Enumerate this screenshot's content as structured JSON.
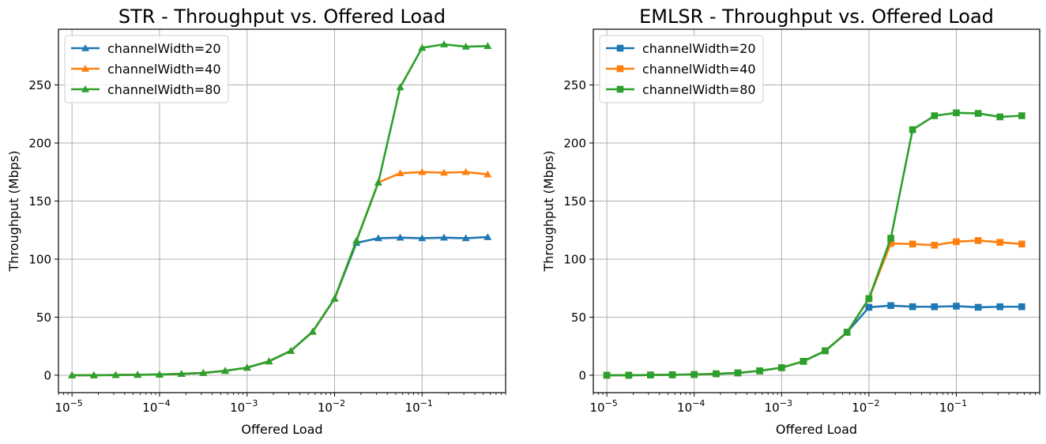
{
  "chart_data": [
    {
      "type": "line",
      "title": "STR - Throughput vs. Offered Load",
      "xlabel": "Offered Load",
      "ylabel": "Throughput (Mbps)",
      "xscale": "log",
      "xlim": [
        7e-06,
        0.9
      ],
      "ylim": [
        -15,
        298
      ],
      "x_ticks": [
        {
          "value": 1e-05,
          "base": "10",
          "exp": "−5"
        },
        {
          "value": 0.0001,
          "base": "10",
          "exp": "−4"
        },
        {
          "value": 0.001,
          "base": "10",
          "exp": "−3"
        },
        {
          "value": 0.01,
          "base": "10",
          "exp": "−2"
        },
        {
          "value": 0.1,
          "base": "10",
          "exp": "−1"
        }
      ],
      "y_ticks": [
        0,
        50,
        100,
        150,
        200,
        250
      ],
      "grid": true,
      "marker": "triangle",
      "legend_position": "upper left",
      "x": [
        1e-05,
        1.78e-05,
        3.16e-05,
        5.62e-05,
        0.0001,
        0.000178,
        0.000316,
        0.000562,
        0.001,
        0.00178,
        0.00316,
        0.00562,
        0.01,
        0.0178,
        0.0316,
        0.0562,
        0.1,
        0.178,
        0.316,
        0.562
      ],
      "series": [
        {
          "name": "channelWidth=20",
          "color": "#1f77b4",
          "values": [
            0,
            0,
            0.2,
            0.4,
            0.6,
            1.2,
            2.0,
            3.8,
            6.5,
            12,
            21,
            37.5,
            66,
            114,
            118,
            118.5,
            118,
            118.5,
            118,
            119
          ]
        },
        {
          "name": "channelWidth=40",
          "color": "#ff7f0e",
          "values": [
            0,
            0,
            0.2,
            0.4,
            0.6,
            1.2,
            2.0,
            3.8,
            6.5,
            12,
            21,
            37.5,
            66,
            116,
            166,
            174,
            175,
            174.5,
            175,
            173
          ]
        },
        {
          "name": "channelWidth=80",
          "color": "#2ca02c",
          "values": [
            0,
            0,
            0.2,
            0.4,
            0.6,
            1.2,
            2.0,
            3.8,
            6.5,
            12,
            21,
            37.5,
            66,
            116,
            166,
            248,
            282,
            285,
            283,
            283.5
          ]
        }
      ]
    },
    {
      "type": "line",
      "title": "EMLSR - Throughput vs. Offered Load",
      "xlabel": "Offered Load",
      "ylabel": "Throughput (Mbps)",
      "xscale": "log",
      "xlim": [
        7e-06,
        0.9
      ],
      "ylim": [
        -15,
        298
      ],
      "x_ticks": [
        {
          "value": 1e-05,
          "base": "10",
          "exp": "−5"
        },
        {
          "value": 0.0001,
          "base": "10",
          "exp": "−4"
        },
        {
          "value": 0.001,
          "base": "10",
          "exp": "−3"
        },
        {
          "value": 0.01,
          "base": "10",
          "exp": "−2"
        },
        {
          "value": 0.1,
          "base": "10",
          "exp": "−1"
        }
      ],
      "y_ticks": [
        0,
        50,
        100,
        150,
        200,
        250
      ],
      "grid": true,
      "marker": "square",
      "legend_position": "upper left",
      "x": [
        1e-05,
        1.78e-05,
        3.16e-05,
        5.62e-05,
        0.0001,
        0.000178,
        0.000316,
        0.000562,
        0.001,
        0.00178,
        0.00316,
        0.00562,
        0.01,
        0.0178,
        0.0316,
        0.0562,
        0.1,
        0.178,
        0.316,
        0.562
      ],
      "series": [
        {
          "name": "channelWidth=20",
          "color": "#1f77b4",
          "values": [
            0,
            0,
            0.2,
            0.4,
            0.6,
            1.2,
            2.0,
            3.8,
            6.5,
            12,
            21,
            37,
            58.5,
            60,
            59,
            59,
            59.5,
            58.5,
            59,
            59
          ]
        },
        {
          "name": "channelWidth=40",
          "color": "#ff7f0e",
          "values": [
            0,
            0,
            0.2,
            0.4,
            0.6,
            1.2,
            2.0,
            3.8,
            6.5,
            12,
            21,
            37,
            66,
            113.5,
            113,
            112,
            115,
            116,
            114.5,
            113
          ]
        },
        {
          "name": "channelWidth=80",
          "color": "#2ca02c",
          "values": [
            0,
            0,
            0.2,
            0.4,
            0.6,
            1.2,
            2.0,
            3.8,
            6.5,
            12,
            21,
            37,
            66,
            118,
            211.5,
            223.5,
            226,
            225.5,
            222.5,
            223.5
          ]
        }
      ]
    }
  ]
}
